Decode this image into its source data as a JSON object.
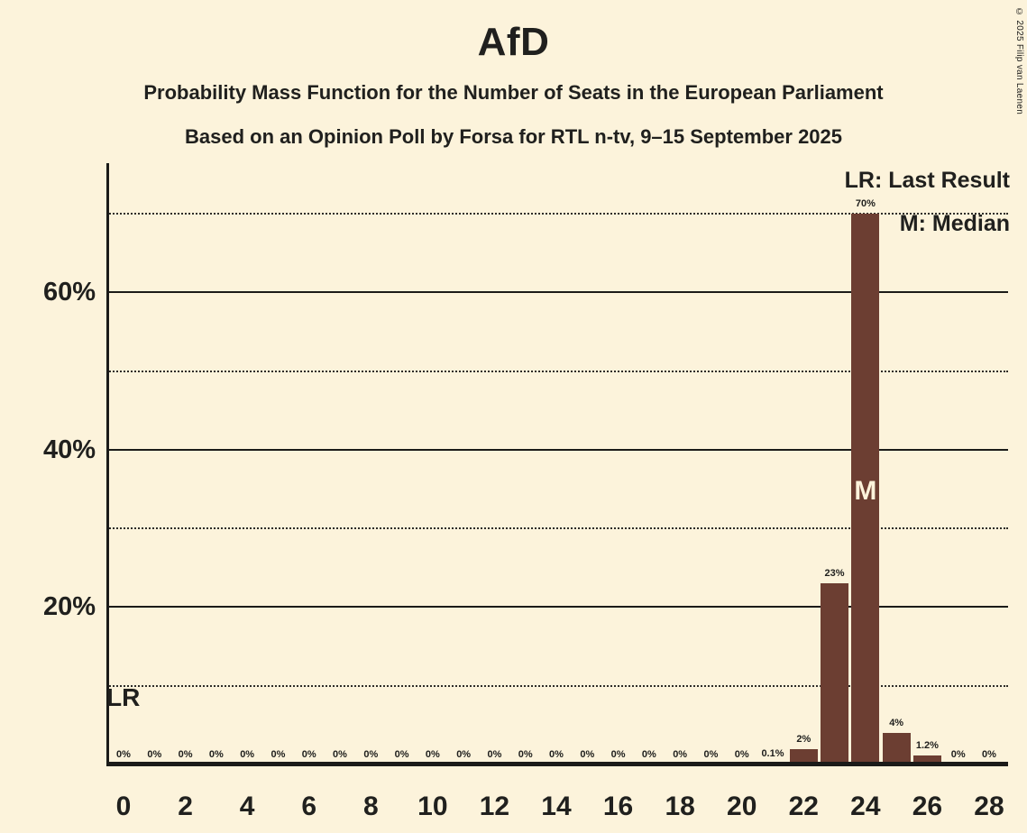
{
  "header": {
    "title": "AfD",
    "subtitle1": "Probability Mass Function for the Number of Seats in the European Parliament",
    "subtitle2": "Based on an Opinion Poll by Forsa for RTL n-tv, 9–15 September 2025"
  },
  "copyright": "© 2025 Filip van Laenen",
  "legend": {
    "lr": "LR: Last Result",
    "m": "M: Median"
  },
  "annotations": {
    "lr_label": "LR",
    "median_label": "M"
  },
  "chart_data": {
    "type": "bar",
    "title": "AfD",
    "x_seats": [
      0,
      1,
      2,
      3,
      4,
      5,
      6,
      7,
      8,
      9,
      10,
      11,
      12,
      13,
      14,
      15,
      16,
      17,
      18,
      19,
      20,
      21,
      22,
      23,
      24,
      25,
      26,
      27,
      28
    ],
    "values": [
      0,
      0,
      0,
      0,
      0,
      0,
      0,
      0,
      0,
      0,
      0,
      0,
      0,
      0,
      0,
      0,
      0,
      0,
      0,
      0,
      0,
      0.1,
      2,
      23,
      70,
      4,
      1.2,
      0,
      0
    ],
    "value_labels": [
      "0%",
      "0%",
      "0%",
      "0%",
      "0%",
      "0%",
      "0%",
      "0%",
      "0%",
      "0%",
      "0%",
      "0%",
      "0%",
      "0%",
      "0%",
      "0%",
      "0%",
      "0%",
      "0%",
      "0%",
      "0%",
      "0.1%",
      "2%",
      "23%",
      "70%",
      "4%",
      "1.2%",
      "0%",
      "0%"
    ],
    "x_tick_labels": [
      "0",
      "2",
      "4",
      "6",
      "8",
      "10",
      "12",
      "14",
      "16",
      "18",
      "20",
      "22",
      "24",
      "26",
      "28"
    ],
    "y_tick_labels": [
      "20%",
      "40%",
      "60%"
    ],
    "y_ticks_solid": [
      20,
      40,
      60
    ],
    "y_ticks_dotted": [
      10,
      30,
      50,
      70
    ],
    "ylim": [
      0,
      76
    ],
    "median_seat": 24,
    "legend_position": "top-right",
    "grid": "horizontal",
    "colors": {
      "bar": "#6C3E32",
      "background": "#FCF3DB",
      "text": "#20201E",
      "gridline": "#1B1B19",
      "median_text": "#FCF3DB"
    }
  }
}
